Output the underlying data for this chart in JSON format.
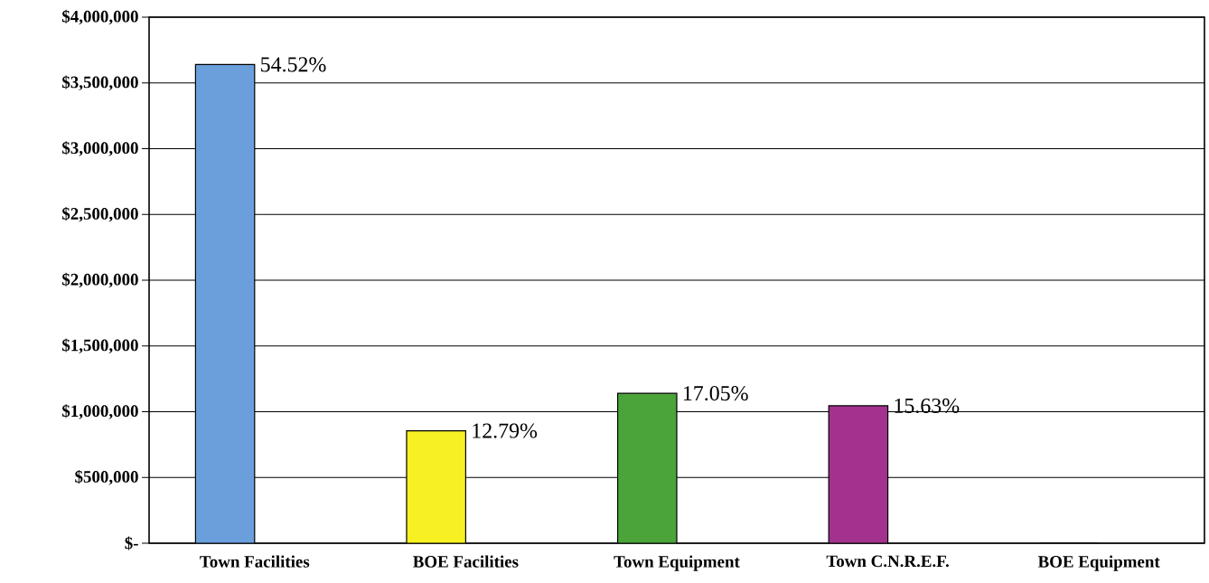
{
  "chart_data": {
    "type": "bar",
    "categories": [
      "Town Facilities",
      "BOE Facilities",
      "Town Equipment",
      "Town C.N.R.E.F.",
      "BOE Equipment"
    ],
    "values": [
      3640000,
      855000,
      1140000,
      1045000,
      0
    ],
    "colors": [
      "#6a9fdc",
      "#f7f022",
      "#4aa43a",
      "#a3328f",
      "#808080"
    ],
    "annotations": [
      {
        "text": "54.52%",
        "x": "Town Facilities",
        "y": 3640000
      },
      {
        "text": "12.79%",
        "x": "BOE Facilities",
        "y": 855000
      },
      {
        "text": "17.05%",
        "x": "Town Equipment",
        "y": 1140000
      },
      {
        "text": "15.63%",
        "x": "Town C.N.R.E.F.",
        "y": 1045000
      }
    ],
    "ylim": [
      0,
      4000000
    ],
    "yticks": [
      {
        "value": 0,
        "label": "$-"
      },
      {
        "value": 500000,
        "label": "$500,000"
      },
      {
        "value": 1000000,
        "label": "$1,000,000"
      },
      {
        "value": 1500000,
        "label": "$1,500,000"
      },
      {
        "value": 2000000,
        "label": "$2,000,000"
      },
      {
        "value": 2500000,
        "label": "$2,500,000"
      },
      {
        "value": 3000000,
        "label": "$3,000,000"
      },
      {
        "value": 3500000,
        "label": "$3,500,000"
      },
      {
        "value": 4000000,
        "label": "$4,000,000"
      }
    ],
    "grid": "y"
  }
}
